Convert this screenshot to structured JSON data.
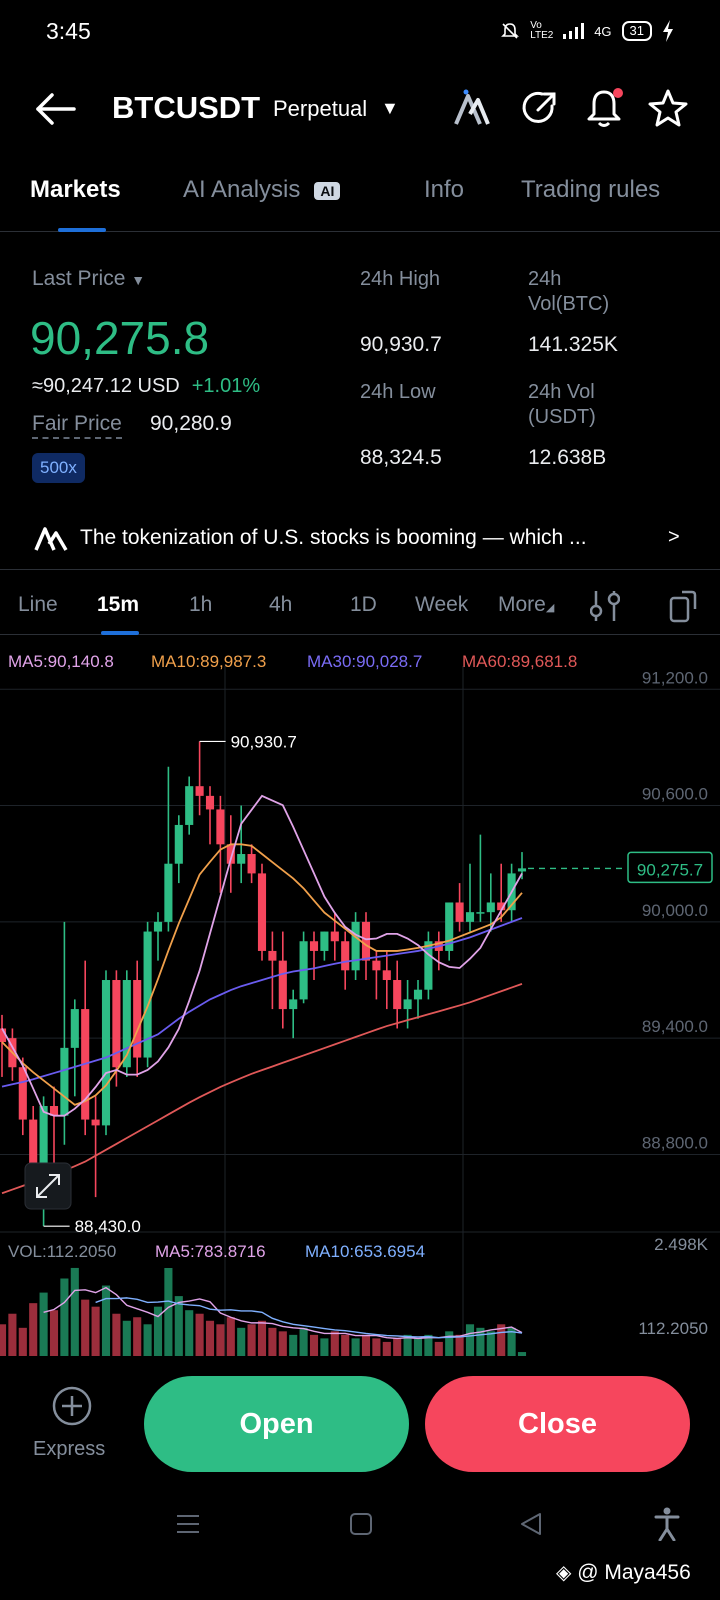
{
  "status": {
    "time": "3:45",
    "network": "4G",
    "volte": "Vo LTE2",
    "battery": "31"
  },
  "header": {
    "symbol": "BTCUSDT",
    "contract_type": "Perpetual",
    "icons": [
      "back-arrow-icon",
      "ai-logo-icon",
      "share-icon",
      "bell-icon",
      "star-icon"
    ]
  },
  "tabs": [
    {
      "label": "Markets",
      "active": true
    },
    {
      "label": "AI Analysis",
      "badge": "AI"
    },
    {
      "label": "Info"
    },
    {
      "label": "Trading rules"
    }
  ],
  "stats": {
    "last_price_label": "Last Price",
    "last_price": "90,275.8",
    "usd_equiv": "≈90,247.12 USD",
    "change_pct": "+1.01%",
    "fair_price_label": "Fair Price",
    "fair_price": "90,280.9",
    "leverage": "500x",
    "high_label": "24h High",
    "high_value": "90,930.7",
    "low_label": "24h Low",
    "low_value": "88,324.5",
    "vol_btc_label_1": "24h",
    "vol_btc_label_2": "Vol(BTC)",
    "vol_btc_value": "141.325K",
    "vol_usdt_label_1": "24h Vol",
    "vol_usdt_label_2": "(USDT)",
    "vol_usdt_value": "12.638B"
  },
  "news": {
    "text": "The tokenization of U.S. stocks is booming — which ..."
  },
  "intervals": {
    "items": [
      "Line",
      "15m",
      "1h",
      "4h",
      "1D",
      "Week",
      "More"
    ],
    "active": "15m"
  },
  "ma_legend": {
    "ma5": "MA5:90,140.8",
    "ma10": "MA10:89,987.3",
    "ma30": "MA30:90,028.7",
    "ma60": "MA60:89,681.8"
  },
  "volume_legend": {
    "vol": "VOL:112.2050",
    "ma5": "MA5:783.8716",
    "ma10": "MA10:653.6954",
    "axis_max": "2.498K",
    "axis_cur": "112.2050"
  },
  "colors": {
    "up": "#2ebd85",
    "down": "#f6465d",
    "ma5": "#e0a3e8",
    "ma10": "#f0a04b",
    "ma30": "#6a5cf0",
    "ma60": "#e05858",
    "accent": "#1e6fd9"
  },
  "chart_data": {
    "type": "candlestick",
    "interval": "15m",
    "y_ticks": [
      "91,200.0",
      "90,600.0",
      "90,000.0",
      "89,400.0",
      "88,800.0"
    ],
    "y_tick_values": [
      91200,
      90600,
      90000,
      89400,
      88800
    ],
    "ylim": [
      88400,
      91320
    ],
    "current_price": 90275.7,
    "current_price_label": "90,275.7",
    "high_marker": {
      "label": "90,930.7",
      "value": 90930.7
    },
    "low_marker": {
      "label": "88,430.0",
      "value": 88430.0
    },
    "candles": [
      {
        "o": 89450,
        "h": 89520,
        "c": 89380,
        "l": 89200
      },
      {
        "o": 89400,
        "h": 89450,
        "c": 89250,
        "l": 89180
      },
      {
        "o": 89250,
        "h": 89300,
        "c": 88980,
        "l": 88900
      },
      {
        "o": 88980,
        "h": 89050,
        "c": 88680,
        "l": 88600
      },
      {
        "o": 88680,
        "h": 89100,
        "c": 89050,
        "l": 88430
      },
      {
        "o": 89050,
        "h": 89150,
        "c": 89000,
        "l": 88700
      },
      {
        "o": 89000,
        "h": 90000,
        "c": 89350,
        "l": 88850
      },
      {
        "o": 89350,
        "h": 89600,
        "c": 89550,
        "l": 89100
      },
      {
        "o": 89550,
        "h": 89800,
        "c": 88980,
        "l": 88900
      },
      {
        "o": 88980,
        "h": 89100,
        "c": 88950,
        "l": 88580
      },
      {
        "o": 88950,
        "h": 89750,
        "c": 89700,
        "l": 88900
      },
      {
        "o": 89700,
        "h": 89750,
        "c": 89250,
        "l": 89150
      },
      {
        "o": 89250,
        "h": 89750,
        "c": 89700,
        "l": 89200
      },
      {
        "o": 89700,
        "h": 89800,
        "c": 89300,
        "l": 89200
      },
      {
        "o": 89300,
        "h": 90000,
        "c": 89950,
        "l": 89250
      },
      {
        "o": 89950,
        "h": 90050,
        "c": 90000,
        "l": 89800
      },
      {
        "o": 90000,
        "h": 90800,
        "c": 90300,
        "l": 89950
      },
      {
        "o": 90300,
        "h": 90550,
        "c": 90500,
        "l": 90200
      },
      {
        "o": 90500,
        "h": 90750,
        "c": 90700,
        "l": 90450
      },
      {
        "o": 90700,
        "h": 90930.7,
        "c": 90650,
        "l": 90550
      },
      {
        "o": 90650,
        "h": 90700,
        "c": 90580,
        "l": 90400
      },
      {
        "o": 90580,
        "h": 90650,
        "c": 90400,
        "l": 90150
      },
      {
        "o": 90400,
        "h": 90550,
        "c": 90300,
        "l": 90150
      },
      {
        "o": 90300,
        "h": 90600,
        "c": 90350,
        "l": 90200
      },
      {
        "o": 90350,
        "h": 90400,
        "c": 90250,
        "l": 90200
      },
      {
        "o": 90250,
        "h": 90300,
        "c": 89850,
        "l": 89800
      },
      {
        "o": 89850,
        "h": 89950,
        "c": 89800,
        "l": 89550
      },
      {
        "o": 89800,
        "h": 89950,
        "c": 89550,
        "l": 89450
      },
      {
        "o": 89550,
        "h": 89650,
        "c": 89600,
        "l": 89400
      },
      {
        "o": 89600,
        "h": 89950,
        "c": 89900,
        "l": 89580
      },
      {
        "o": 89900,
        "h": 89950,
        "c": 89850,
        "l": 89700
      },
      {
        "o": 89850,
        "h": 89950,
        "c": 89950,
        "l": 89800
      },
      {
        "o": 89950,
        "h": 90050,
        "c": 89900,
        "l": 89800
      },
      {
        "o": 89900,
        "h": 89950,
        "c": 89750,
        "l": 89650
      },
      {
        "o": 89750,
        "h": 90050,
        "c": 90000,
        "l": 89700
      },
      {
        "o": 90000,
        "h": 90050,
        "c": 89800,
        "l": 89700
      },
      {
        "o": 89800,
        "h": 89850,
        "c": 89750,
        "l": 89600
      },
      {
        "o": 89750,
        "h": 89850,
        "c": 89700,
        "l": 89550
      },
      {
        "o": 89700,
        "h": 89800,
        "c": 89550,
        "l": 89450
      },
      {
        "o": 89550,
        "h": 89700,
        "c": 89600,
        "l": 89450
      },
      {
        "o": 89600,
        "h": 89700,
        "c": 89650,
        "l": 89500
      },
      {
        "o": 89650,
        "h": 89950,
        "c": 89900,
        "l": 89600
      },
      {
        "o": 89900,
        "h": 89950,
        "c": 89850,
        "l": 89750
      },
      {
        "o": 89850,
        "h": 90100,
        "c": 90100,
        "l": 89800
      },
      {
        "o": 90100,
        "h": 90200,
        "c": 90000,
        "l": 89950
      },
      {
        "o": 90000,
        "h": 90300,
        "c": 90050,
        "l": 89950
      },
      {
        "o": 90050,
        "h": 90450,
        "c": 90050,
        "l": 90000
      },
      {
        "o": 90050,
        "h": 90250,
        "c": 90100,
        "l": 89950
      },
      {
        "o": 90100,
        "h": 90300,
        "c": 90060,
        "l": 90000
      },
      {
        "o": 90060,
        "h": 90300,
        "c": 90250,
        "l": 90000
      },
      {
        "o": 90260,
        "h": 90360,
        "c": 90276,
        "l": 90220
      }
    ],
    "ma5": [
      89450,
      89250,
      89000,
      89000,
      89100,
      89250,
      89200,
      89250,
      89400,
      89700,
      90100,
      90500,
      90650,
      90600,
      90350,
      90100,
      89950,
      89900,
      89950,
      89900,
      89800,
      89750,
      89850,
      90050,
      90250
    ],
    "ma10": [
      89380,
      89250,
      89150,
      89050,
      89120,
      89300,
      89600,
      89950,
      90250,
      90400,
      90400,
      90300,
      90200,
      90050,
      89950,
      89850,
      89850,
      89870,
      89900,
      89950,
      90000,
      90150
    ],
    "ma30": [
      89150,
      89180,
      89220,
      89260,
      89300,
      89360,
      89420,
      89520,
      89600,
      89660,
      89700,
      89740,
      89760,
      89790,
      89810,
      89830,
      89850,
      89880,
      89920,
      89970,
      90020
    ],
    "ma60": [
      88600,
      88650,
      88700,
      88760,
      88840,
      88920,
      89000,
      89080,
      89150,
      89210,
      89260,
      89310,
      89360,
      89410,
      89460,
      89500,
      89540,
      89580,
      89630,
      89680
    ],
    "volume": [
      0.9,
      1.2,
      0.8,
      1.5,
      1.8,
      1.3,
      2.2,
      2.5,
      1.6,
      1.4,
      2.0,
      1.2,
      1.0,
      1.1,
      0.9,
      1.4,
      2.498,
      1.7,
      1.3,
      1.2,
      1.0,
      0.9,
      1.1,
      0.8,
      0.9,
      1.0,
      0.8,
      0.7,
      0.6,
      0.8,
      0.6,
      0.5,
      0.7,
      0.6,
      0.5,
      0.6,
      0.5,
      0.4,
      0.5,
      0.6,
      0.5,
      0.6,
      0.4,
      0.7,
      0.6,
      0.9,
      0.8,
      0.7,
      0.9,
      0.8,
      0.1122
    ],
    "volume_max": 2.498
  },
  "bottom": {
    "express_label": "Express",
    "open_label": "Open",
    "close_label": "Close"
  },
  "watermark": "@ Maya456"
}
